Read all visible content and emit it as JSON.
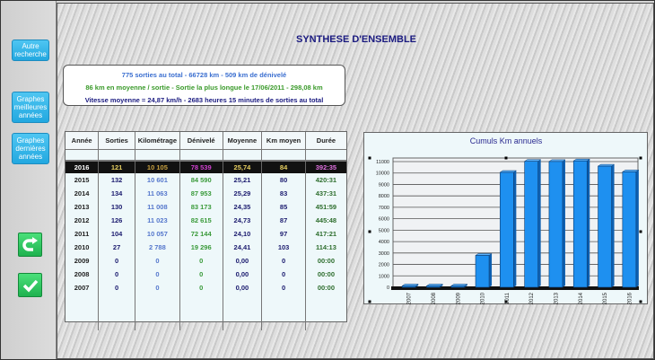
{
  "sidebar": {
    "buttons": [
      {
        "label": "Autre recherche"
      },
      {
        "label": "Graphes meilleures années"
      },
      {
        "label": "Graphes dernières années"
      }
    ],
    "icons": [
      "redo-arrow-icon",
      "checkmark-icon"
    ]
  },
  "title": "SYNTHESE D'ENSEMBLE",
  "summary": {
    "line1": "775 sorties au total  - 66728 km - 509 km de dénivelé",
    "line2": "86 km en moyenne / sortie - Sortie la plus longue le 17/06/2011 - 298,08 km",
    "line3": "Vitesse moyenne = 24,87 km/h - 2683 heures 15 minutes  de sorties au total",
    "colors": {
      "line1": "#3b6fd0",
      "line2": "#3a9a2a",
      "line3": "#1a1a80"
    }
  },
  "table": {
    "headers": [
      "Année",
      "Sorties",
      "Kilométrage",
      "Dénivelé",
      "Moyenne",
      "Km moyen",
      "Durée"
    ],
    "rows": [
      [
        "2016",
        "121",
        "10 105",
        "78 539",
        "25,74",
        "84",
        "392:35"
      ],
      [
        "2015",
        "132",
        "10 601",
        "84 590",
        "25,21",
        "80",
        "420:31"
      ],
      [
        "2014",
        "134",
        "11 063",
        "87 953",
        "25,29",
        "83",
        "437:31"
      ],
      [
        "2013",
        "130",
        "11 008",
        "83 173",
        "24,35",
        "85",
        "451:59"
      ],
      [
        "2012",
        "126",
        "11 023",
        "82 615",
        "24,73",
        "87",
        "445:48"
      ],
      [
        "2011",
        "104",
        "10 057",
        "72 144",
        "24,10",
        "97",
        "417:21"
      ],
      [
        "2010",
        "27",
        "2 788",
        "19 296",
        "24,41",
        "103",
        "114:13"
      ],
      [
        "2009",
        "0",
        "0",
        "0",
        "0,00",
        "0",
        "00:00"
      ],
      [
        "2008",
        "0",
        "0",
        "0",
        "0,00",
        "0",
        "00:00"
      ],
      [
        "2007",
        "0",
        "0",
        "0",
        "0,00",
        "0",
        "00:00"
      ]
    ],
    "highlighted_row": "2016"
  },
  "chart_data": {
    "type": "bar",
    "title": "Cumuls Km annuels",
    "categories": [
      "2007",
      "2008",
      "2009",
      "2010",
      "2011",
      "2012",
      "2013",
      "2014",
      "2015",
      "2016"
    ],
    "values": [
      0,
      0,
      0,
      2788,
      10057,
      11023,
      11008,
      11063,
      10601,
      10105
    ],
    "ylim": [
      0,
      11000
    ],
    "yticks": [
      0,
      1000,
      2000,
      3000,
      4000,
      5000,
      6000,
      7000,
      8000,
      9000,
      10000,
      11000
    ],
    "grid": true,
    "bar_color": "#1e90f0"
  }
}
